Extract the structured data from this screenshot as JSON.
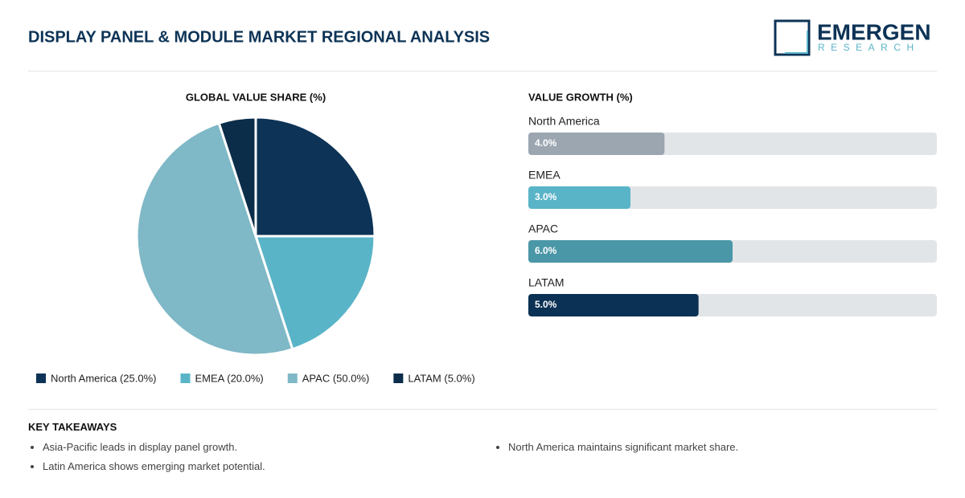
{
  "header": {
    "title": "DISPLAY PANEL & MODULE MARKET REGIONAL ANALYSIS",
    "logo_main": "EMERGEN",
    "logo_sub": "RESEARCH"
  },
  "chart_data": [
    {
      "type": "pie",
      "title": "GLOBAL VALUE SHARE (%)",
      "categories": [
        "North America",
        "EMEA",
        "APAC",
        "LATAM"
      ],
      "values": [
        25,
        20,
        50,
        5
      ],
      "legend_labels": [
        "North America (25.0%)",
        "EMEA (20.0%)",
        "APAC (50.0%)",
        "LATAM (5.0%)"
      ],
      "colors": [
        "#0d3356",
        "#5ab4c8",
        "#7fb8c6",
        "#0b2d4a"
      ]
    },
    {
      "type": "hbar",
      "title": "VALUE GROWTH (%)",
      "categories": [
        "North America",
        "EMEA",
        "APAC",
        "LATAM"
      ],
      "values": [
        4,
        3,
        6,
        5
      ],
      "value_labels": [
        "4.0%",
        "3.0%",
        "6.0%",
        "5.0%"
      ],
      "colors": [
        "#9ba6b1",
        "#5ab4c8",
        "#4a97a7",
        "#0b3154"
      ],
      "xlim": [
        0,
        12
      ]
    }
  ],
  "takeaways": {
    "title": "KEY TAKEAWAYS",
    "items": [
      "Asia-Pacific leads in display panel growth.",
      "North America maintains significant market share.",
      "Latin America shows emerging market potential."
    ]
  }
}
